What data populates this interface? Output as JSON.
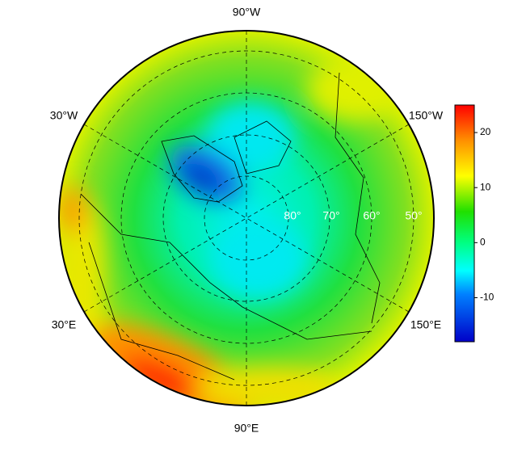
{
  "map": {
    "lon_labels": [
      "90°W",
      "30°W",
      "150°W",
      "30°E",
      "150°E",
      "90°E"
    ],
    "lat_labels": [
      "80°",
      "70°",
      "60°",
      "50°"
    ]
  },
  "colorbar": {
    "lim": [
      -18,
      25
    ],
    "ticks": [
      20,
      10,
      0,
      -10
    ]
  }
}
